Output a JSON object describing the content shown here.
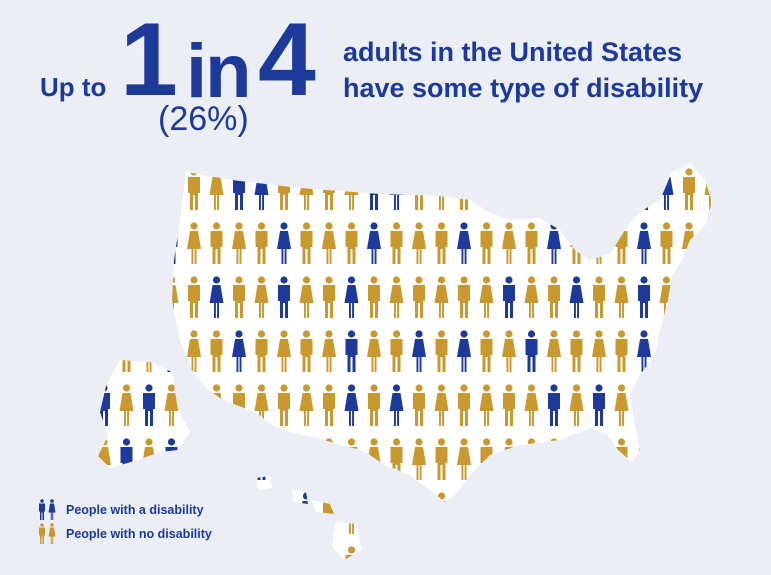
{
  "headline": {
    "prefix": "Up to",
    "number_one": "1",
    "connector": "in",
    "number_four": "4",
    "percent": "(26%)",
    "line1": "adults in the United States",
    "line2": "have some type of disability"
  },
  "legend": [
    {
      "label": "People with a disability",
      "color": "#1d3a9a",
      "icon": "people-pair-icon"
    },
    {
      "label": "People with no disability",
      "color": "#c9982e",
      "icon": "people-pair-icon"
    }
  ],
  "colors": {
    "disability": "#1d3a9a",
    "no_disability": "#c9982e",
    "background": "#eceef6",
    "map_fill": "#ffffff"
  },
  "share_with_disability": 0.26
}
